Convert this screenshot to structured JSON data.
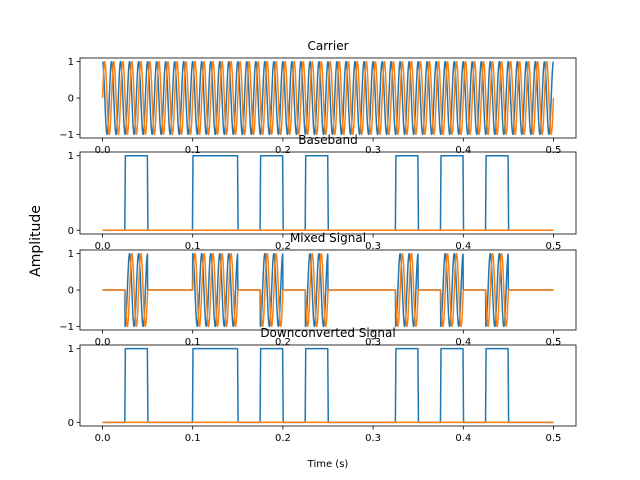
{
  "figure": {
    "ylabel": "Amplitude",
    "xlabel": "Time (s)"
  },
  "chart_data": [
    {
      "type": "line",
      "title": "Carrier",
      "signal": "sinusoid",
      "frequency_hz": 100,
      "x_ticks": [
        0.0,
        0.1,
        0.2,
        0.3,
        0.4,
        0.5
      ],
      "x_tick_labels": [
        "0.0",
        "0.1",
        "0.2",
        "0.3",
        "0.4",
        "0.5"
      ],
      "y_ticks": [
        -1,
        0,
        1
      ],
      "y_tick_labels": [
        "−1",
        "0",
        "1"
      ],
      "xlim": [
        -0.025,
        0.525
      ],
      "ylim": [
        -1.1,
        1.1
      ],
      "colors": [
        "#1f77b4",
        "#ff7f0e"
      ],
      "series": [
        {
          "component": "cos",
          "color": "#1f77b4"
        },
        {
          "component": "sin",
          "color": "#ff7f0e"
        }
      ]
    },
    {
      "type": "line",
      "title": "Baseband",
      "signal": "bits",
      "bit_duration_s": 0.025,
      "bits": [
        0,
        1,
        0,
        0,
        1,
        1,
        0,
        1,
        0,
        1,
        0,
        0,
        0,
        1,
        0,
        1,
        0,
        1,
        0,
        0
      ],
      "x_ticks": [
        0.0,
        0.1,
        0.2,
        0.3,
        0.4,
        0.5
      ],
      "x_tick_labels": [
        "0.0",
        "0.1",
        "0.2",
        "0.3",
        "0.4",
        "0.5"
      ],
      "y_ticks": [
        0,
        1
      ],
      "y_tick_labels": [
        "0",
        "1"
      ],
      "xlim": [
        -0.025,
        0.525
      ],
      "ylim": [
        -0.05,
        1.05
      ],
      "colors": [
        "#1f77b4",
        "#ff7f0e"
      ],
      "series": [
        {
          "component": "real",
          "color": "#1f77b4"
        },
        {
          "component": "imag",
          "color": "#ff7f0e",
          "constant": 0
        }
      ]
    },
    {
      "type": "line",
      "title": "Mixed Signal",
      "signal": "modulated",
      "frequency_hz": 100,
      "bit_duration_s": 0.025,
      "bits": [
        0,
        1,
        0,
        0,
        1,
        1,
        0,
        1,
        0,
        1,
        0,
        0,
        0,
        1,
        0,
        1,
        0,
        1,
        0,
        0
      ],
      "x_ticks": [
        0.0,
        0.1,
        0.2,
        0.3,
        0.4,
        0.5
      ],
      "x_tick_labels": [
        "0.0",
        "0.1",
        "0.2",
        "0.3",
        "0.4",
        "0.5"
      ],
      "y_ticks": [
        -1,
        0,
        1
      ],
      "y_tick_labels": [
        "−1",
        "0",
        "1"
      ],
      "xlim": [
        -0.025,
        0.525
      ],
      "ylim": [
        -1.1,
        1.1
      ],
      "colors": [
        "#1f77b4",
        "#ff7f0e"
      ],
      "series": [
        {
          "component": "cos",
          "color": "#1f77b4"
        },
        {
          "component": "sin",
          "color": "#ff7f0e"
        }
      ]
    },
    {
      "type": "line",
      "title": "Downconverted Signal",
      "signal": "bits",
      "bit_duration_s": 0.025,
      "bits": [
        0,
        1,
        0,
        0,
        1,
        1,
        0,
        1,
        0,
        1,
        0,
        0,
        0,
        1,
        0,
        1,
        0,
        1,
        0,
        0
      ],
      "x_ticks": [
        0.0,
        0.1,
        0.2,
        0.3,
        0.4,
        0.5
      ],
      "x_tick_labels": [
        "0.0",
        "0.1",
        "0.2",
        "0.3",
        "0.4",
        "0.5"
      ],
      "y_ticks": [
        0,
        1
      ],
      "y_tick_labels": [
        "0",
        "1"
      ],
      "xlim": [
        -0.025,
        0.525
      ],
      "ylim": [
        -0.05,
        1.05
      ],
      "colors": [
        "#1f77b4",
        "#ff7f0e"
      ],
      "series": [
        {
          "component": "real",
          "color": "#1f77b4"
        },
        {
          "component": "imag",
          "color": "#ff7f0e",
          "constant": 0
        }
      ]
    }
  ]
}
